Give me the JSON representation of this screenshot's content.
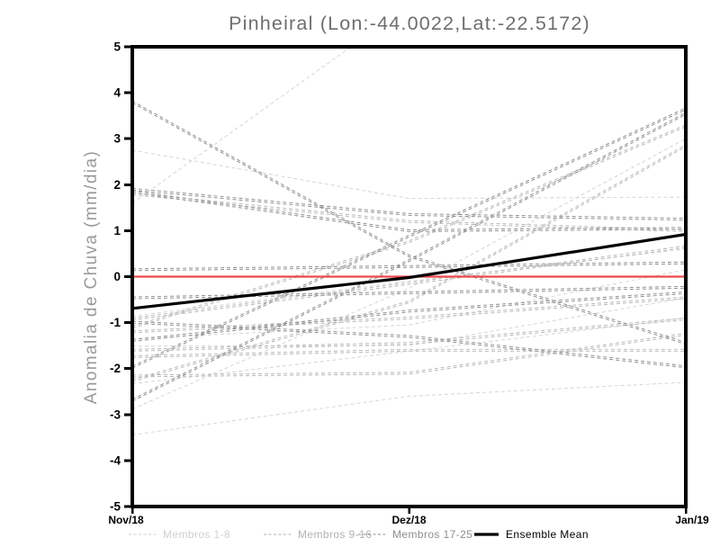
{
  "page": {
    "background_color": "#ffffff"
  },
  "chart_data": {
    "type": "line",
    "title": "Pinheiral (Lon:-44.0022,Lat:-22.5172)",
    "ylabel": "Anomalia de Chuva (mm/dia)",
    "xlabel": "",
    "x_categories": [
      "Nov/18",
      "Dez/18",
      "Jan/19"
    ],
    "ylim": [
      -5,
      5
    ],
    "yticks": [
      5,
      4,
      3,
      2,
      1,
      0,
      -1,
      -2,
      -3,
      -4,
      -5
    ],
    "grid": false,
    "legend_position": "bottom",
    "axis_color": "#000000",
    "title_color": "#6e6e6e",
    "ylabel_color": "#9a9a9a",
    "zero_line": {
      "value": 0,
      "color": "#f04848"
    },
    "groups": [
      {
        "name": "Membros 1-8",
        "color": "#d7d7d7",
        "style": "dashed",
        "double_stroke": false,
        "members": [
          [
            2.75,
            1.7,
            1.73
          ],
          [
            1.6,
            5.9,
            6.0
          ],
          [
            -0.86,
            -0.1,
            0.6
          ],
          [
            -1.35,
            -1.05,
            0.15
          ],
          [
            -1.51,
            -1.5,
            -0.46
          ],
          [
            -2.33,
            -1.62,
            -0.9
          ],
          [
            -2.88,
            -0.25,
            3.0
          ],
          [
            -3.44,
            -2.6,
            -2.3
          ]
        ]
      },
      {
        "name": "Membros 9-16",
        "color": "#b6b6b6",
        "style": "dashed",
        "double_stroke": true,
        "members": [
          [
            1.8,
            1.2,
            1.0
          ],
          [
            -0.92,
            -0.15,
            0.65
          ],
          [
            -1.1,
            0.76,
            3.28
          ],
          [
            -1.2,
            -0.9,
            -0.46
          ],
          [
            -1.6,
            -1.45,
            -0.92
          ],
          [
            -1.74,
            -1.6,
            -1.6
          ],
          [
            -2.16,
            -2.1,
            -1.25
          ],
          [
            -2.26,
            -0.55,
            2.85
          ]
        ]
      },
      {
        "name": "Membros 17-25",
        "color": "#8d8d8d",
        "style": "dashed",
        "double_stroke": true,
        "members": [
          [
            3.8,
            0.45,
            -1.45
          ],
          [
            1.9,
            1.35,
            1.25
          ],
          [
            1.85,
            1.0,
            1.05
          ],
          [
            0.15,
            0.22,
            0.3
          ],
          [
            -0.46,
            -0.35,
            -0.23
          ],
          [
            -2.69,
            0.35,
            3.55
          ],
          [
            -1.97,
            0.88,
            3.65
          ],
          [
            -0.99,
            -1.3,
            -1.96
          ],
          [
            -1.39,
            -0.75,
            -0.35
          ]
        ]
      }
    ],
    "ensemble_mean": {
      "name": "Ensemble Mean",
      "color": "#000000",
      "style": "solid",
      "values": [
        -0.69,
        -0.02,
        0.92
      ]
    },
    "legend": [
      {
        "label": "Membros 1-8",
        "color": "#d0d0d0",
        "style": "dashed"
      },
      {
        "label": "Membros 9-16",
        "color": "#b2b2b2",
        "style": "dashed"
      },
      {
        "label": "Membros 17-25",
        "color": "#8e8e8e",
        "style": "dashed"
      },
      {
        "label": "Ensemble Mean",
        "color": "#000000",
        "style": "solid"
      }
    ]
  }
}
